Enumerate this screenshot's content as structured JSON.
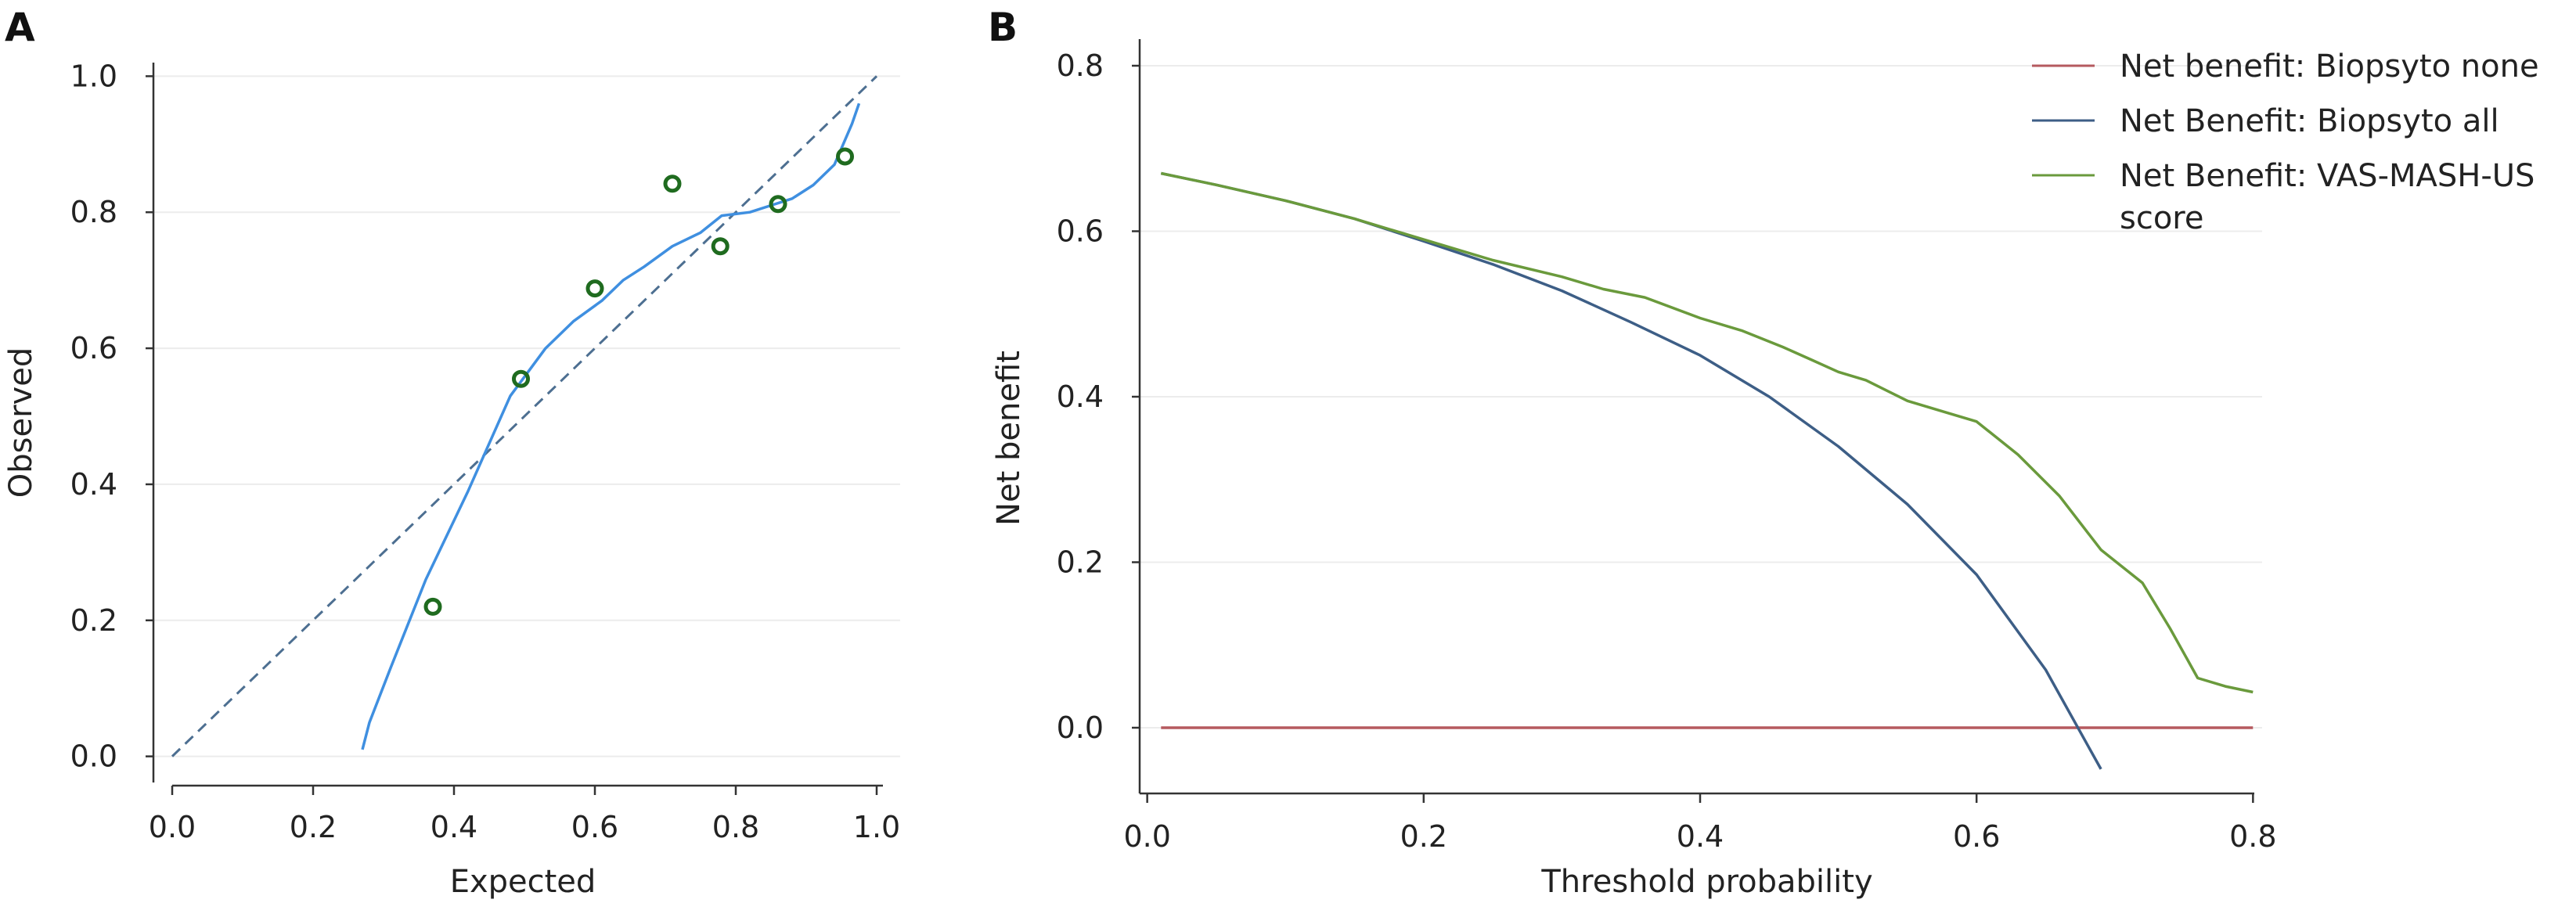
{
  "colors": {
    "calib_curve": "#3f8fe0",
    "calib_diag": "#4d6f91",
    "calib_points": "#1f6b1f",
    "none": "#b55a5f",
    "all": "#3d5e86",
    "model": "#6a9a3c"
  },
  "chart_data": [
    {
      "panel": "A",
      "type": "scatter",
      "title": "",
      "xlabel": "Expected",
      "ylabel": "Observed",
      "xlim": [
        0.0,
        1.0
      ],
      "ylim": [
        0.0,
        1.0
      ],
      "xticks": [
        "0.0",
        "0.2",
        "0.4",
        "0.6",
        "0.8",
        "1.0"
      ],
      "yticks": [
        "0.0",
        "0.2",
        "0.4",
        "0.6",
        "0.8",
        "1.0"
      ],
      "grid": "horizontal",
      "points": {
        "x": [
          0.37,
          0.495,
          0.6,
          0.71,
          0.778,
          0.86,
          0.955
        ],
        "y": [
          0.22,
          0.555,
          0.688,
          0.842,
          0.75,
          0.812,
          0.882
        ]
      },
      "curve": {
        "x": [
          0.27,
          0.28,
          0.31,
          0.36,
          0.42,
          0.48,
          0.53,
          0.57,
          0.61,
          0.64,
          0.67,
          0.71,
          0.75,
          0.78,
          0.82,
          0.85,
          0.88,
          0.91,
          0.94,
          0.965,
          0.975
        ],
        "y": [
          0.01,
          0.05,
          0.13,
          0.26,
          0.39,
          0.53,
          0.6,
          0.64,
          0.67,
          0.7,
          0.72,
          0.75,
          0.77,
          0.795,
          0.8,
          0.81,
          0.82,
          0.84,
          0.87,
          0.93,
          0.96
        ]
      },
      "reference_line": {
        "x": [
          0.0,
          1.0
        ],
        "y": [
          0.0,
          1.0
        ]
      }
    },
    {
      "panel": "B",
      "type": "line",
      "title": "",
      "xlabel": "Threshold probability",
      "ylabel": "Net benefit",
      "xlim": [
        0.0,
        0.8
      ],
      "ylim": [
        -0.05,
        0.8
      ],
      "xticks": [
        "0.0",
        "0.2",
        "0.4",
        "0.6",
        "0.8"
      ],
      "yticks": [
        "0.0",
        "0.2",
        "0.4",
        "0.6",
        "0.8"
      ],
      "grid": "horizontal",
      "legend": "top-right",
      "series": [
        {
          "name": "Net benefit: Biopsyto none",
          "color_key": "none",
          "x": [
            0.01,
            0.8
          ],
          "y": [
            0.0,
            0.0
          ]
        },
        {
          "name": "Net Benefit: Biopsyto all",
          "color_key": "all",
          "x": [
            0.01,
            0.05,
            0.1,
            0.15,
            0.2,
            0.25,
            0.3,
            0.35,
            0.4,
            0.45,
            0.5,
            0.55,
            0.6,
            0.65,
            0.69
          ],
          "y": [
            0.67,
            0.656,
            0.637,
            0.615,
            0.588,
            0.56,
            0.528,
            0.49,
            0.45,
            0.4,
            0.34,
            0.27,
            0.185,
            0.07,
            -0.05
          ]
        },
        {
          "name": "Net Benefit: VAS-MASH-US score",
          "color_key": "model",
          "x": [
            0.01,
            0.05,
            0.1,
            0.15,
            0.2,
            0.25,
            0.3,
            0.33,
            0.36,
            0.4,
            0.43,
            0.46,
            0.48,
            0.5,
            0.52,
            0.55,
            0.58,
            0.6,
            0.63,
            0.66,
            0.69,
            0.72,
            0.74,
            0.76,
            0.78,
            0.8
          ],
          "y": [
            0.67,
            0.656,
            0.637,
            0.615,
            0.59,
            0.565,
            0.545,
            0.53,
            0.52,
            0.495,
            0.48,
            0.46,
            0.445,
            0.43,
            0.42,
            0.395,
            0.38,
            0.37,
            0.33,
            0.28,
            0.215,
            0.175,
            0.12,
            0.06,
            0.05,
            0.043
          ]
        }
      ]
    }
  ]
}
